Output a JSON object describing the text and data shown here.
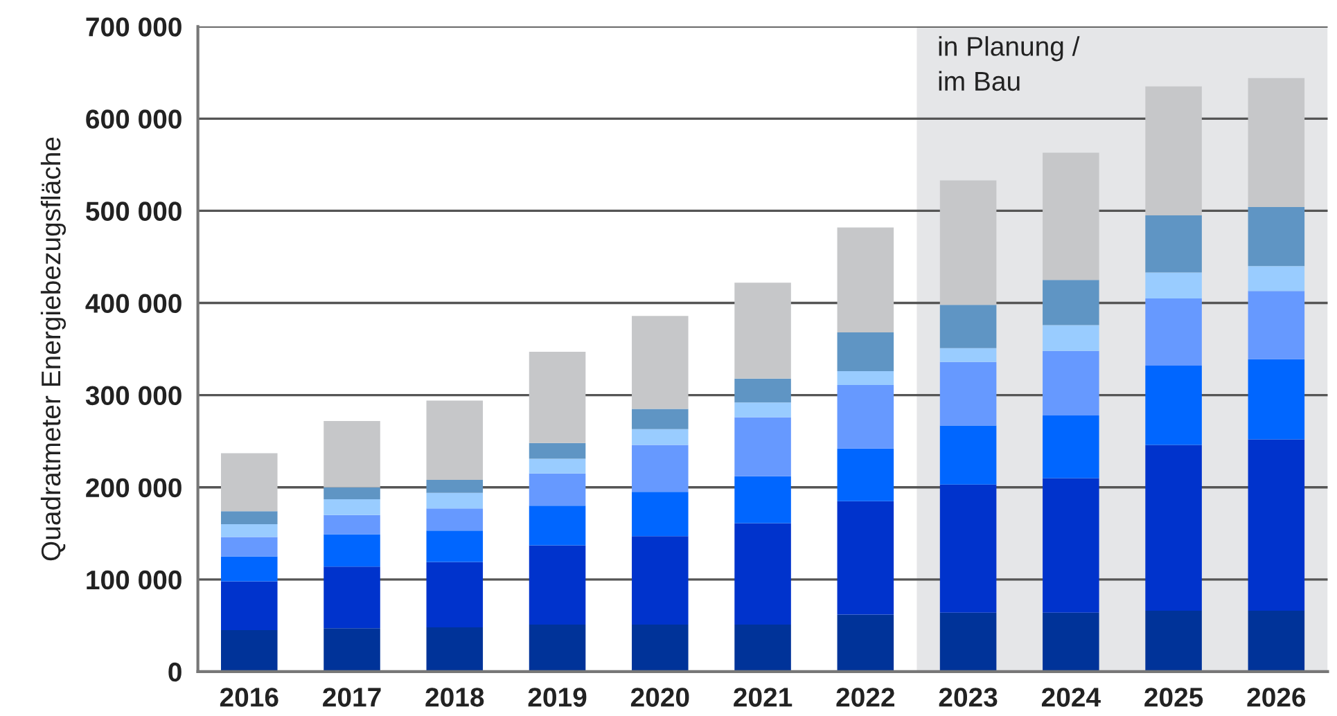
{
  "chart_data": {
    "type": "bar",
    "stacked": true,
    "ylabel": "Quadratmeter Energiebezugsfläche",
    "categories": [
      "2016",
      "2017",
      "2018",
      "2019",
      "2020",
      "2021",
      "2022",
      "2023",
      "2024",
      "2025",
      "2026"
    ],
    "series": [
      {
        "color": "#003399",
        "values": [
          45000,
          47000,
          48000,
          51000,
          51000,
          51000,
          62000,
          64000,
          64000,
          66000,
          66000
        ]
      },
      {
        "color": "#0033cc",
        "values": [
          53000,
          67000,
          71000,
          86000,
          96000,
          110000,
          123000,
          139000,
          146000,
          180000,
          186000
        ]
      },
      {
        "color": "#0066ff",
        "values": [
          27000,
          35000,
          34000,
          43000,
          48000,
          51000,
          57000,
          64000,
          68000,
          86000,
          87000
        ]
      },
      {
        "color": "#6699ff",
        "values": [
          21000,
          21000,
          24000,
          35000,
          51000,
          64000,
          69000,
          69000,
          70000,
          73000,
          74000
        ]
      },
      {
        "color": "#99ccff",
        "values": [
          14000,
          17000,
          17000,
          16000,
          17000,
          16000,
          15000,
          15000,
          28000,
          28000,
          27000
        ]
      },
      {
        "color": "#5f95c4",
        "values": [
          14000,
          13000,
          14000,
          17000,
          22000,
          26000,
          42000,
          47000,
          49000,
          62000,
          64000
        ]
      },
      {
        "color": "#c6c7c9",
        "values": [
          63000,
          72000,
          86000,
          99000,
          101000,
          104000,
          114000,
          135000,
          138000,
          140000,
          140000
        ]
      }
    ],
    "ylim": [
      0,
      700000
    ],
    "yticks": [
      {
        "value": 0,
        "label": "0"
      },
      {
        "value": 100000,
        "label": "100 000"
      },
      {
        "value": 200000,
        "label": "200 000"
      },
      {
        "value": 300000,
        "label": "300 000"
      },
      {
        "value": 400000,
        "label": "400 000"
      },
      {
        "value": 500000,
        "label": "500 000"
      },
      {
        "value": 600000,
        "label": "600 000"
      },
      {
        "value": 700000,
        "label": "700 000"
      }
    ],
    "grid": "y",
    "legend": false,
    "bands": [
      {
        "axis": "x",
        "from": "2023",
        "to": "2026",
        "label": "in Planung /\nim Bau",
        "color": "#e5e6e8"
      }
    ]
  }
}
